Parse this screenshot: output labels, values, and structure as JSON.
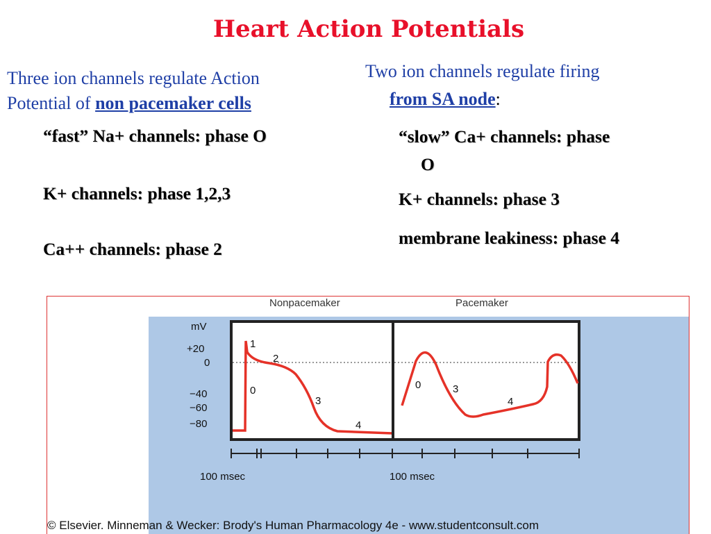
{
  "title": "Heart Action Potentials",
  "left": {
    "intro_line1": "Three ion channels regulate Action",
    "intro_line2_prefix": "Potential of ",
    "intro_line2_link": "non pacemaker cells",
    "items": [
      "“fast” Na+ channels: phase O",
      "K+ channels:  phase 1,2,3",
      "Ca++ channels: phase 2"
    ]
  },
  "right": {
    "intro_line1": "Two ion channels regulate firing",
    "intro_line2_link": "from SA node",
    "intro_line2_suffix": ":",
    "items": [
      "“slow” Ca+ channels: phase",
      "O",
      "K+ channels:  phase 3",
      "membrane leakiness: phase 4"
    ]
  },
  "figure": {
    "panel_titles": [
      "Nonpacemaker",
      "Pacemaker"
    ],
    "y_axis_unit": "mV",
    "y_ticks": [
      "+20",
      "0",
      "−40",
      "−60",
      "−80"
    ],
    "nonpacemaker_phase_labels": [
      "1",
      "2",
      "0",
      "3",
      "4"
    ],
    "pacemaker_phase_labels": [
      "0",
      "3",
      "4"
    ],
    "time_scale_labels": [
      "100 msec",
      "100 msec"
    ],
    "copyright": "© Elsevier. Minneman & Wecker: Brody's Human Pharmacology 4e - www.studentconsult.com",
    "colors": {
      "trace": "#e53228",
      "background_panel": "#aec8e6",
      "frame": "#222222",
      "border": "#dd3333"
    }
  }
}
